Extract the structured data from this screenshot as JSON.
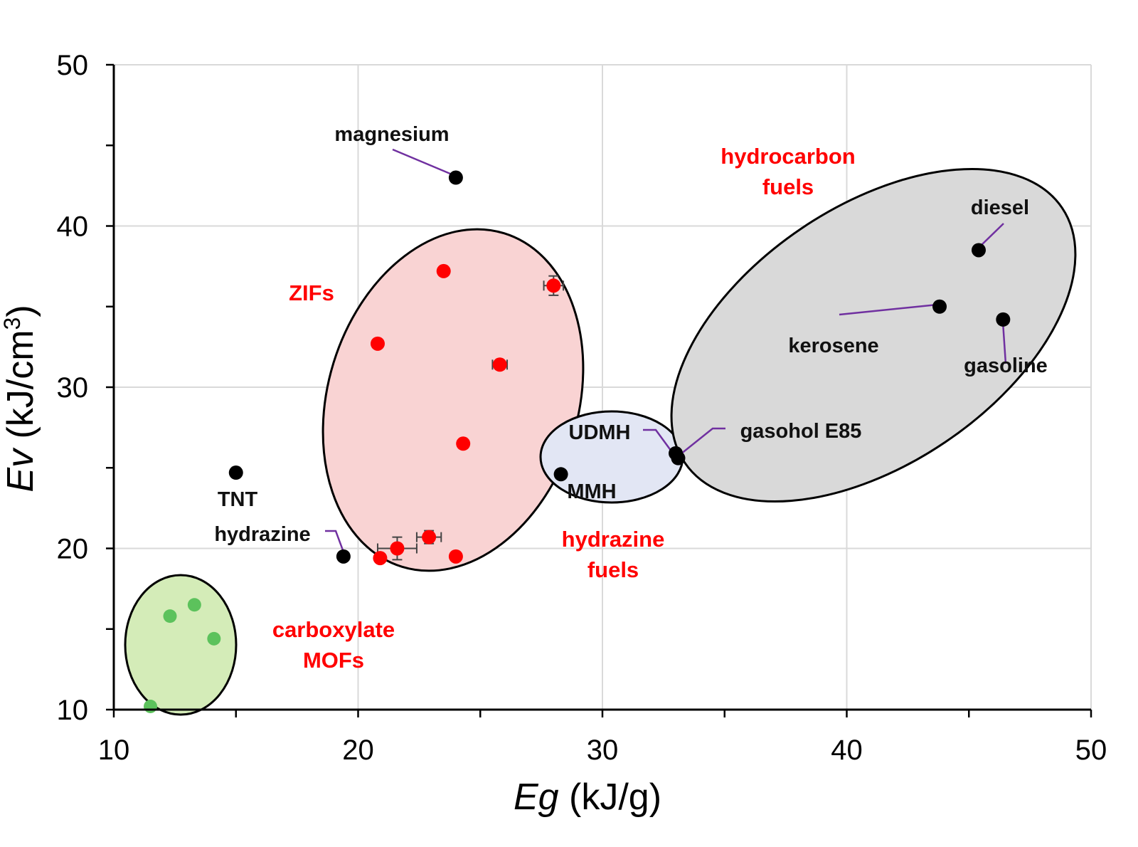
{
  "chart_data": {
    "type": "scatter",
    "title": "",
    "xlabel": {
      "symbol": "Eg",
      "unit": " (kJ/g)"
    },
    "ylabel": {
      "symbol": "Ev",
      "unit": " (kJ/cm",
      "sup": "3",
      "close": ")"
    },
    "xlim": [
      10,
      50
    ],
    "ylim": [
      10,
      50
    ],
    "x_ticks": [
      10,
      20,
      30,
      40,
      50
    ],
    "y_ticks": [
      10,
      20,
      30,
      40,
      50
    ],
    "grid": true,
    "colors": {
      "zif": "#ff0000",
      "mof": "#5cc25c",
      "reference": "#000000",
      "group_label": "#ff0000",
      "leader": "#7030a0",
      "zif_region": "#f9d3d3",
      "mof_region": "#d4ecb8",
      "hydrazine_region": "#e2e6f4",
      "hydrocarbon_region": "#d9d9d9"
    },
    "series": [
      {
        "key": "zif",
        "points": [
          {
            "x": 23.5,
            "y": 37.2
          },
          {
            "x": 28.0,
            "y": 36.3,
            "xerr": 0.4,
            "yerr": 0.6
          },
          {
            "x": 20.8,
            "y": 32.7
          },
          {
            "x": 25.8,
            "y": 31.4,
            "xerr": 0.3
          },
          {
            "x": 24.3,
            "y": 26.5
          },
          {
            "x": 22.9,
            "y": 20.7,
            "xerr": 0.5,
            "yerr": 0.4
          },
          {
            "x": 21.6,
            "y": 20.0,
            "xerr": 0.8,
            "yerr": 0.7
          },
          {
            "x": 20.9,
            "y": 19.4
          },
          {
            "x": 24.0,
            "y": 19.5
          }
        ]
      },
      {
        "key": "mof",
        "points": [
          {
            "x": 12.3,
            "y": 15.8
          },
          {
            "x": 13.3,
            "y": 16.5
          },
          {
            "x": 14.1,
            "y": 14.4
          },
          {
            "x": 11.5,
            "y": 10.2
          }
        ]
      },
      {
        "key": "reference",
        "points": [
          {
            "name": "magnesium",
            "x": 24.0,
            "y": 43.0
          },
          {
            "name": "TNT",
            "x": 15.0,
            "y": 24.7
          },
          {
            "name": "hydrazine",
            "x": 19.4,
            "y": 19.5
          },
          {
            "name": "MMH",
            "x": 28.3,
            "y": 24.6
          },
          {
            "name": "UDMH",
            "x": 33.0,
            "y": 25.9
          },
          {
            "name": "gasohol E85",
            "x": 33.1,
            "y": 25.6
          },
          {
            "name": "diesel",
            "x": 45.4,
            "y": 38.5
          },
          {
            "name": "kerosene",
            "x": 43.8,
            "y": 35.0
          },
          {
            "name": "gasoline",
            "x": 46.4,
            "y": 34.2
          }
        ]
      }
    ],
    "groups": [
      {
        "key": "zif",
        "lines": [
          "ZIFs"
        ]
      },
      {
        "key": "hydrocarbon",
        "lines": [
          "hydrocarbon",
          "fuels"
        ]
      },
      {
        "key": "hydrazine",
        "lines": [
          "hydrazine",
          "fuels"
        ]
      },
      {
        "key": "mof",
        "lines": [
          "carboxylate",
          "MOFs"
        ]
      }
    ]
  }
}
